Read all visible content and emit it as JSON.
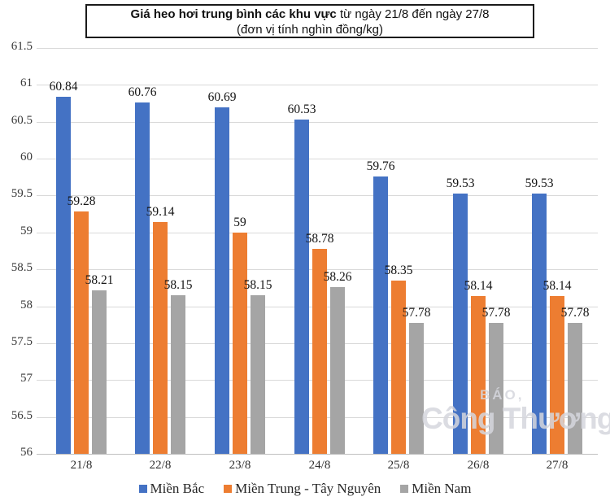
{
  "title": {
    "part1": "Giá heo hơi trung bình các khu vực",
    "part2": "từ ngày 21/8 đến ngày 27/8",
    "line2": "(đơn vị tính nghìn đồng/kg)"
  },
  "watermark": {
    "small": "BÁO,",
    "large": "Công Thương"
  },
  "chart_data": {
    "type": "bar",
    "title": "Giá heo hơi trung bình các khu vực từ ngày 21/8 đến ngày 27/8",
    "subtitle": "(đơn vị tính nghìn đồng/kg)",
    "categories": [
      "21/8",
      "22/8",
      "23/8",
      "24/8",
      "25/8",
      "26/8",
      "27/8"
    ],
    "series": [
      {
        "name": "Miền Bắc",
        "color": "#4472C4",
        "values": [
          60.84,
          60.76,
          60.69,
          60.53,
          59.76,
          59.53,
          59.53
        ],
        "labels": [
          "60.84",
          "60.76",
          "60.69",
          "60.53",
          "59.76",
          "59.53",
          "59.53"
        ]
      },
      {
        "name": "Miền Trung - Tây Nguyên",
        "color": "#ED7D31",
        "values": [
          59.28,
          59.14,
          59,
          58.78,
          58.35,
          58.14,
          58.14
        ],
        "labels": [
          "59.28",
          "59.14",
          "59",
          "58.78",
          "58.35",
          "58.14",
          "58.14"
        ]
      },
      {
        "name": "Miền Nam",
        "color": "#A5A5A5",
        "values": [
          58.21,
          58.15,
          58.15,
          58.26,
          57.78,
          57.78,
          57.78
        ],
        "labels": [
          "58.21",
          "58.15",
          "58.15",
          "58.26",
          "57.78",
          "57.78",
          "57.78"
        ]
      }
    ],
    "xlabel": "",
    "ylabel": "",
    "ylim": [
      56,
      61.5
    ],
    "yticks": [
      61.5,
      61,
      60.5,
      60,
      59.5,
      59,
      58.5,
      58,
      57.5,
      57,
      56.5,
      56
    ],
    "grid": true,
    "gridline_color": "#d9d9d9",
    "axis_line_color": "#bfbfbf",
    "legend_position": "bottom"
  }
}
